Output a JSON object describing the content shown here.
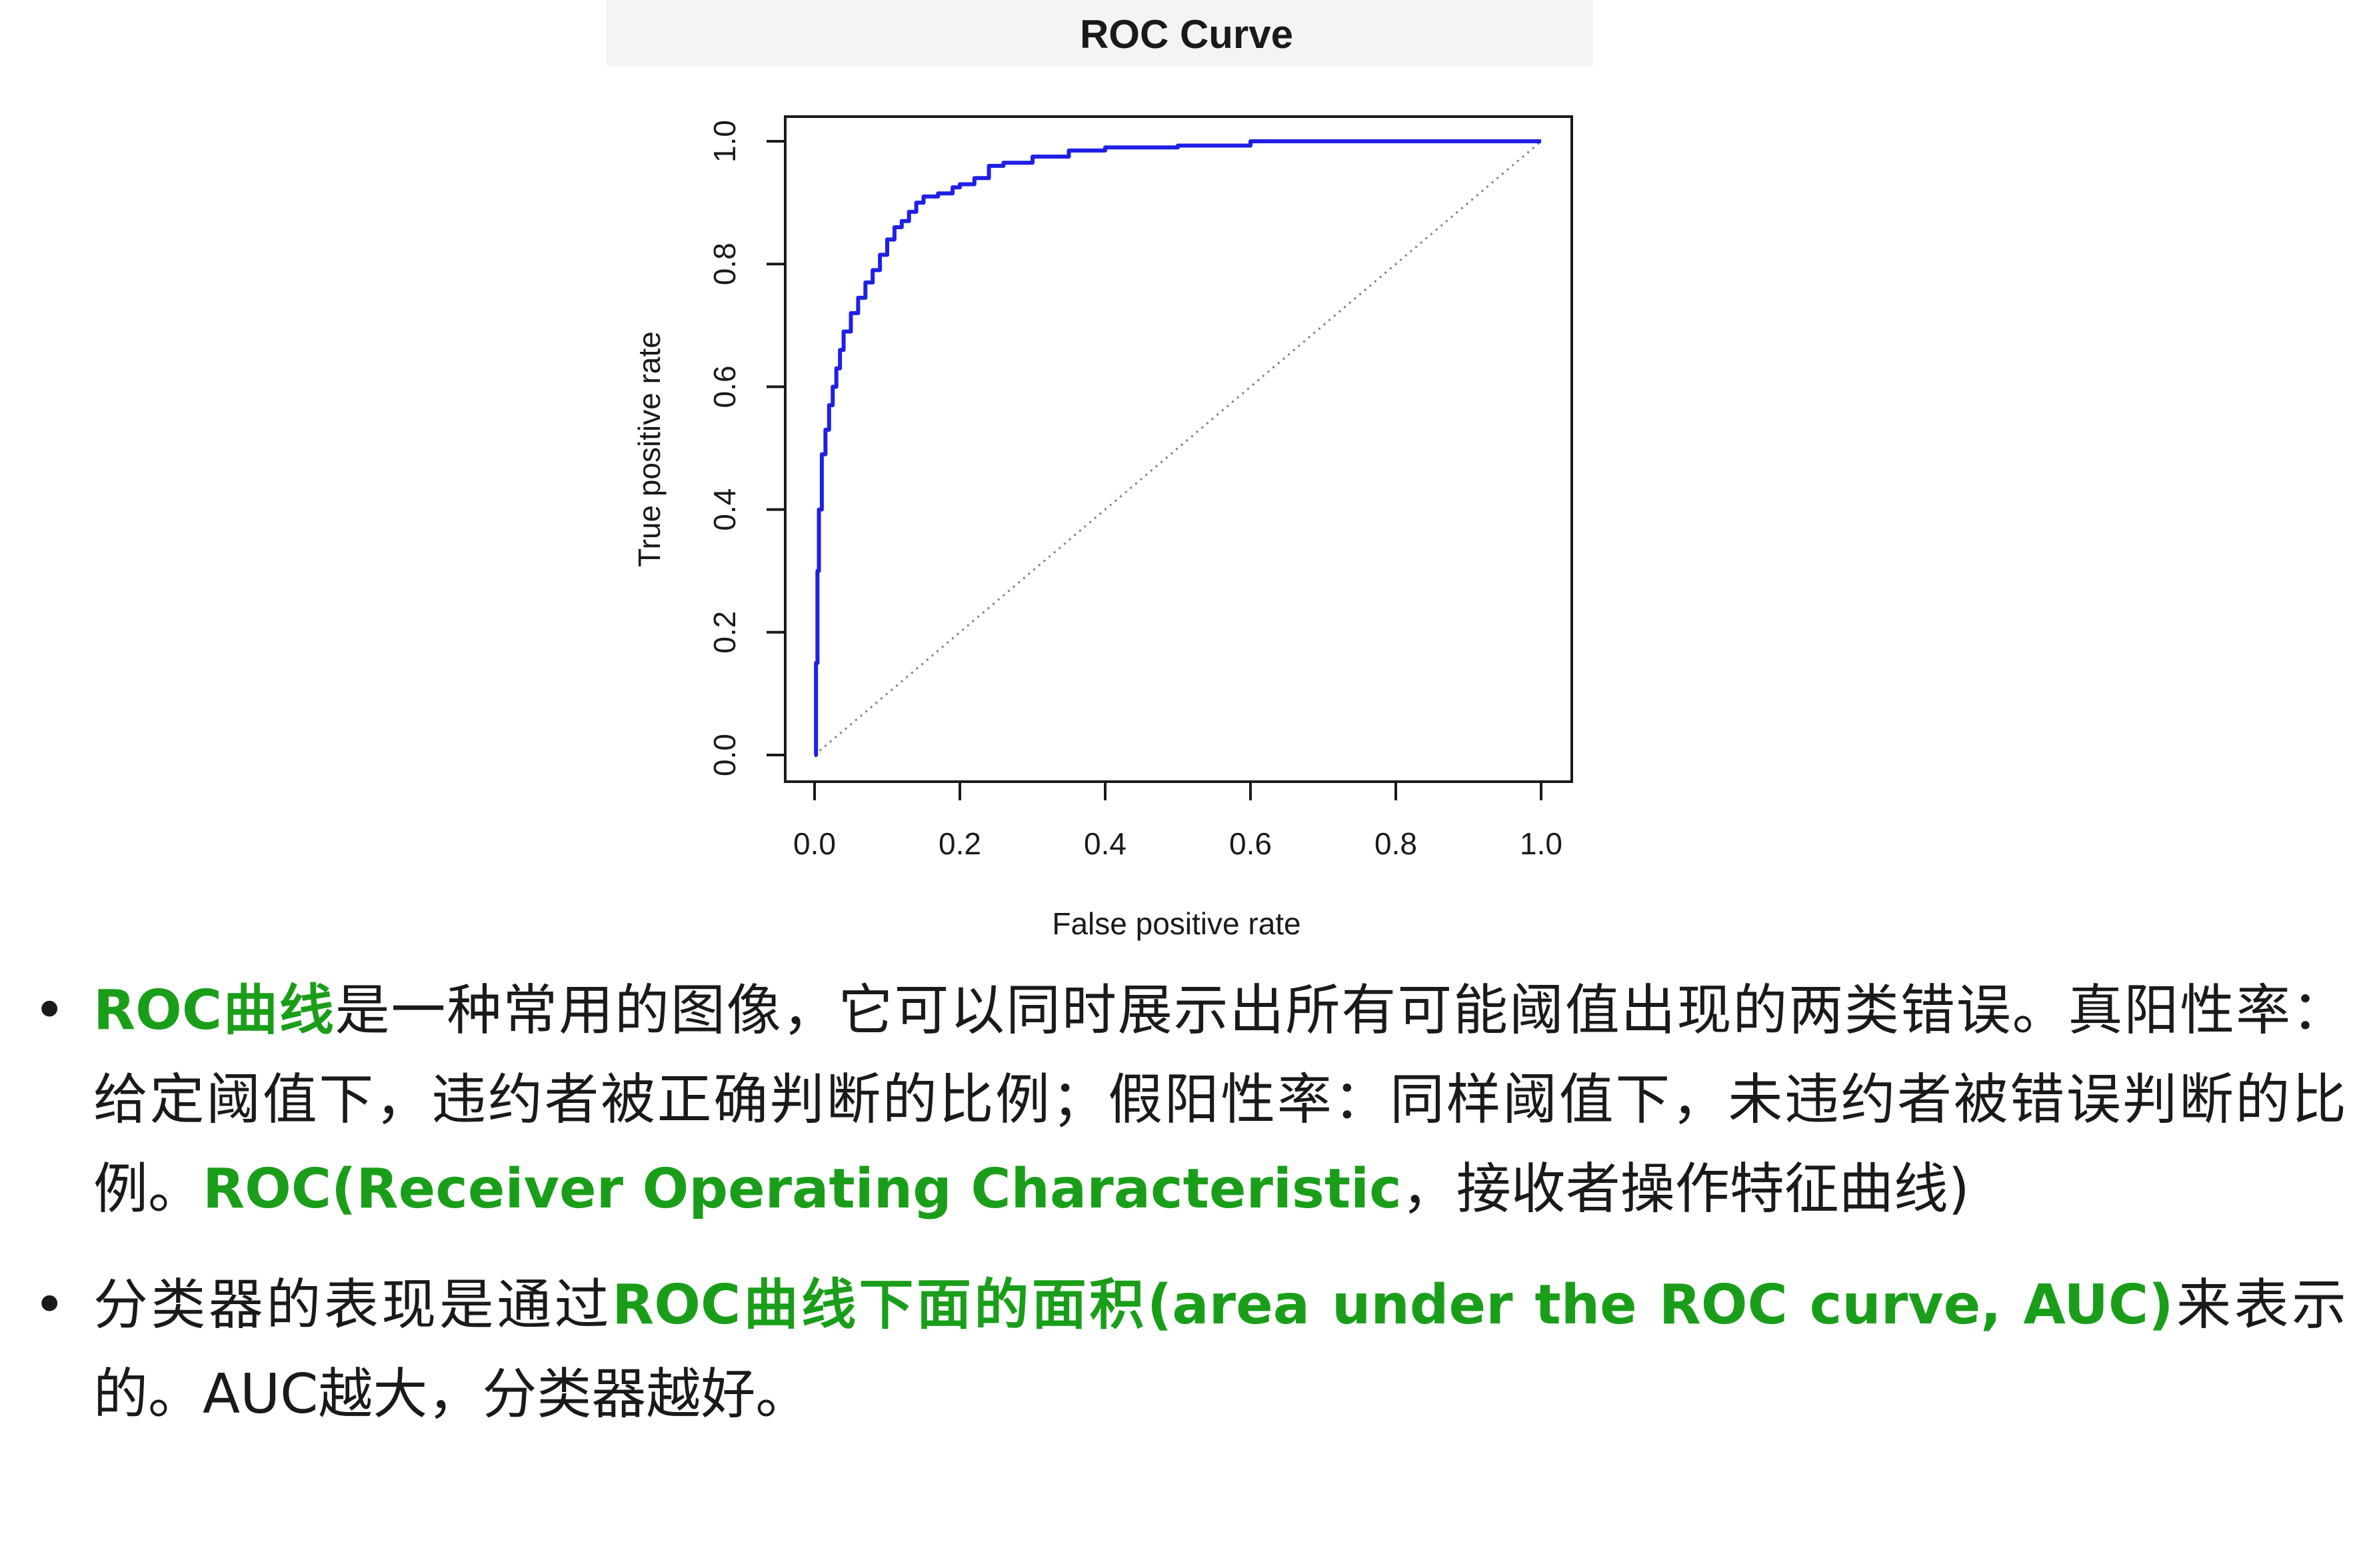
{
  "colors": {
    "curve": "#1f1fe6",
    "accent_text": "#1a9e1a",
    "diagonal": "#808080",
    "body_text": "#1a1a1a"
  },
  "chart_data": {
    "type": "line",
    "title": "ROC Curve",
    "xlabel": "False positive rate",
    "ylabel": "True positive rate",
    "xlim": [
      0,
      1
    ],
    "ylim": [
      0,
      1
    ],
    "xticks": [
      "0.0",
      "0.2",
      "0.4",
      "0.6",
      "0.8",
      "1.0"
    ],
    "yticks": [
      "0.0",
      "0.2",
      "0.4",
      "0.6",
      "0.8",
      "1.0"
    ],
    "grid": false,
    "series": [
      {
        "x": [
          0,
          0.002,
          0.004,
          0.006,
          0.01,
          0.015,
          0.02,
          0.025,
          0.03,
          0.035,
          0.04,
          0.05,
          0.06,
          0.07,
          0.08,
          0.09,
          0.1,
          0.11,
          0.12,
          0.13,
          0.14,
          0.15,
          0.17,
          0.19,
          0.2,
          0.22,
          0.24,
          0.26,
          0.3,
          0.35,
          0.4,
          0.5,
          0.6,
          1.0
        ],
        "y": [
          0,
          0.15,
          0.3,
          0.4,
          0.49,
          0.53,
          0.57,
          0.6,
          0.63,
          0.66,
          0.69,
          0.72,
          0.745,
          0.77,
          0.79,
          0.815,
          0.84,
          0.86,
          0.87,
          0.885,
          0.9,
          0.91,
          0.915,
          0.925,
          0.93,
          0.94,
          0.96,
          0.965,
          0.975,
          0.985,
          0.99,
          0.993,
          1.0,
          1.0
        ]
      },
      {
        "style": "dotted",
        "x": [
          0,
          1
        ],
        "y": [
          0,
          1
        ]
      }
    ]
  },
  "text": {
    "b1_dot": "•",
    "b1_g1": "ROC曲线",
    "b1_t1": "是一种常用的图像，它可以同时展示出所有可能阈值出现的两类错误。真阳性率：给定阈值下，违约者被正确判断的比例；假阳性率：同样阈值下，未违约者被错误判断的比例。",
    "b1_g2": "ROC(Receiver Operating Characteristic",
    "b1_t2": "，接收者操作特征曲线)",
    "b2_dot": "•",
    "b2_t1": "分类器的表现是通过",
    "b2_g1": "ROC曲线下面的面积(area under the ROC curve, AUC)",
    "b2_t2": "来表示的。AUC越大，分类器越好。"
  }
}
